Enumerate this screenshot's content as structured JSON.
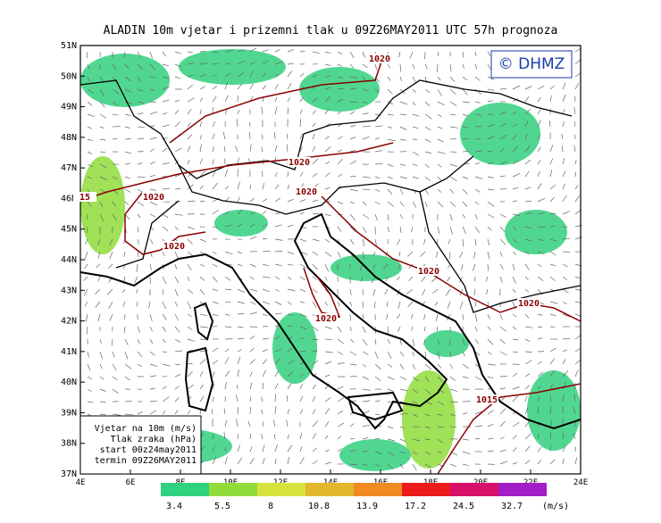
{
  "title": "ALADIN 10m vjetar i prizemni tlak u 09Z26MAY2011 UTC 57h prognoza",
  "logo": "© DHMZ",
  "lat_labels": [
    "51N",
    "50N",
    "49N",
    "48N",
    "47N",
    "46N",
    "45N",
    "44N",
    "43N",
    "42N",
    "41N",
    "40N",
    "39N",
    "38N",
    "37N"
  ],
  "lon_labels": [
    "4E",
    "6E",
    "8E",
    "10E",
    "12E",
    "14E",
    "16E",
    "18E",
    "20E",
    "22E",
    "24E"
  ],
  "legend": [
    "Vjetar na 10m (m/s)",
    "Tlak zraka (hPa)",
    "start 00z24may2011",
    "termin 09Z26MAY2011"
  ],
  "colorbar": {
    "values": [
      3.4,
      5.5,
      8,
      10.8,
      13.9,
      17.2,
      24.5,
      32.7
    ],
    "colors": [
      "#2fd27e",
      "#8fdc3a",
      "#d6e33c",
      "#e2b72e",
      "#f08a22",
      "#ee1b1b",
      "#d8106a",
      "#a21cc8"
    ],
    "unit": "(m/s)"
  },
  "isobar_labels": [
    "1020",
    "1020",
    "1020",
    "1020",
    "1020",
    "1020",
    "1020",
    "1020",
    "15",
    "1015"
  ]
}
